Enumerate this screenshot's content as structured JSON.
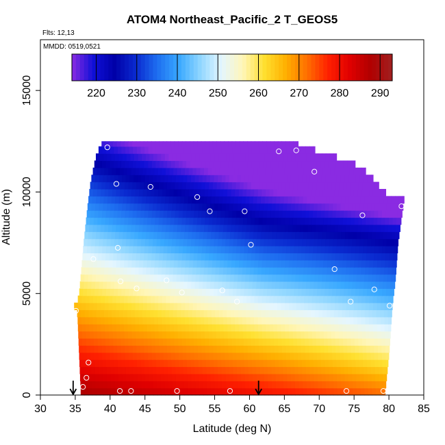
{
  "chart_data": {
    "type": "heatmap",
    "title": "ATOM4 Northeast_Pacific_2 T_GEOS5",
    "flights_label": "Flts: 12,13",
    "dates_label": "MMDD: 0519,0521",
    "xlabel": "Latitude (deg N)",
    "ylabel": "Altitude (m)",
    "xlim": [
      30,
      85
    ],
    "ylim": [
      0,
      17500
    ],
    "x_ticks": [
      "30",
      "35",
      "40",
      "45",
      "50",
      "55",
      "60",
      "65",
      "70",
      "75",
      "80",
      "85"
    ],
    "y_ticks": [
      "0",
      "5000",
      "10000",
      "15000"
    ],
    "colorbar": {
      "range": [
        214,
        293
      ],
      "ticks": [
        "220",
        "230",
        "240",
        "250",
        "260",
        "270",
        "280",
        "290"
      ],
      "colors": [
        "#8a2be2",
        "#1010d8",
        "#0000a8",
        "#0a2ad0",
        "#1e6ef0",
        "#38a8ff",
        "#8fd6ff",
        "#e4f6ff",
        "#fff6b8",
        "#ffe030",
        "#ffb000",
        "#ff7000",
        "#ff2000",
        "#e00000",
        "#b00000",
        "#a02020"
      ]
    },
    "curtain": {
      "altitude_step_m": 350,
      "latitude_step_deg": 0.55,
      "bottom_alt_m": 0,
      "top_alt_m": 12500,
      "left_edge": [
        [
          0,
          35.8
        ],
        [
          4000,
          35.3
        ],
        [
          4400,
          34.8
        ],
        [
          4800,
          35.5
        ],
        [
          6300,
          35.9
        ],
        [
          7500,
          36.2
        ],
        [
          9400,
          36.8
        ],
        [
          10500,
          37.2
        ],
        [
          11800,
          38.0
        ],
        [
          12450,
          38.8
        ]
      ],
      "right_edge": [
        [
          0,
          79.4
        ],
        [
          2000,
          80.0
        ],
        [
          4500,
          80.5
        ],
        [
          5600,
          80.9
        ],
        [
          7500,
          81.3
        ],
        [
          9700,
          82.2
        ],
        [
          10000,
          79.3
        ],
        [
          10900,
          77.2
        ],
        [
          11500,
          74.6
        ],
        [
          12000,
          69.9
        ],
        [
          12450,
          66.8
        ]
      ]
    },
    "flight_track_points": [
      [
        39.6,
        12200
      ],
      [
        64.2,
        12000
      ],
      [
        66.7,
        12050
      ],
      [
        69.3,
        11000
      ],
      [
        40.9,
        10400
      ],
      [
        45.8,
        10250
      ],
      [
        52.5,
        9750
      ],
      [
        54.3,
        9050
      ],
      [
        59.3,
        9050
      ],
      [
        81.8,
        9300
      ],
      [
        76.2,
        8850
      ],
      [
        41.1,
        7250
      ],
      [
        60.2,
        7400
      ],
      [
        37.6,
        6700
      ],
      [
        72.2,
        6200
      ],
      [
        48.1,
        5650
      ],
      [
        41.5,
        5600
      ],
      [
        43.8,
        5250
      ],
      [
        50.3,
        5050
      ],
      [
        56.1,
        5150
      ],
      [
        58.2,
        4600
      ],
      [
        74.5,
        4600
      ],
      [
        77.9,
        5200
      ],
      [
        80.1,
        4400
      ],
      [
        35.1,
        4150
      ],
      [
        36.9,
        1600
      ],
      [
        36.6,
        850
      ],
      [
        36.1,
        400
      ],
      [
        41.4,
        200
      ],
      [
        43.0,
        200
      ],
      [
        49.6,
        200
      ],
      [
        57.2,
        200
      ],
      [
        73.9,
        200
      ],
      [
        79.2,
        200
      ]
    ],
    "arrows_at_latitude": [
      34.7,
      61.3
    ]
  }
}
